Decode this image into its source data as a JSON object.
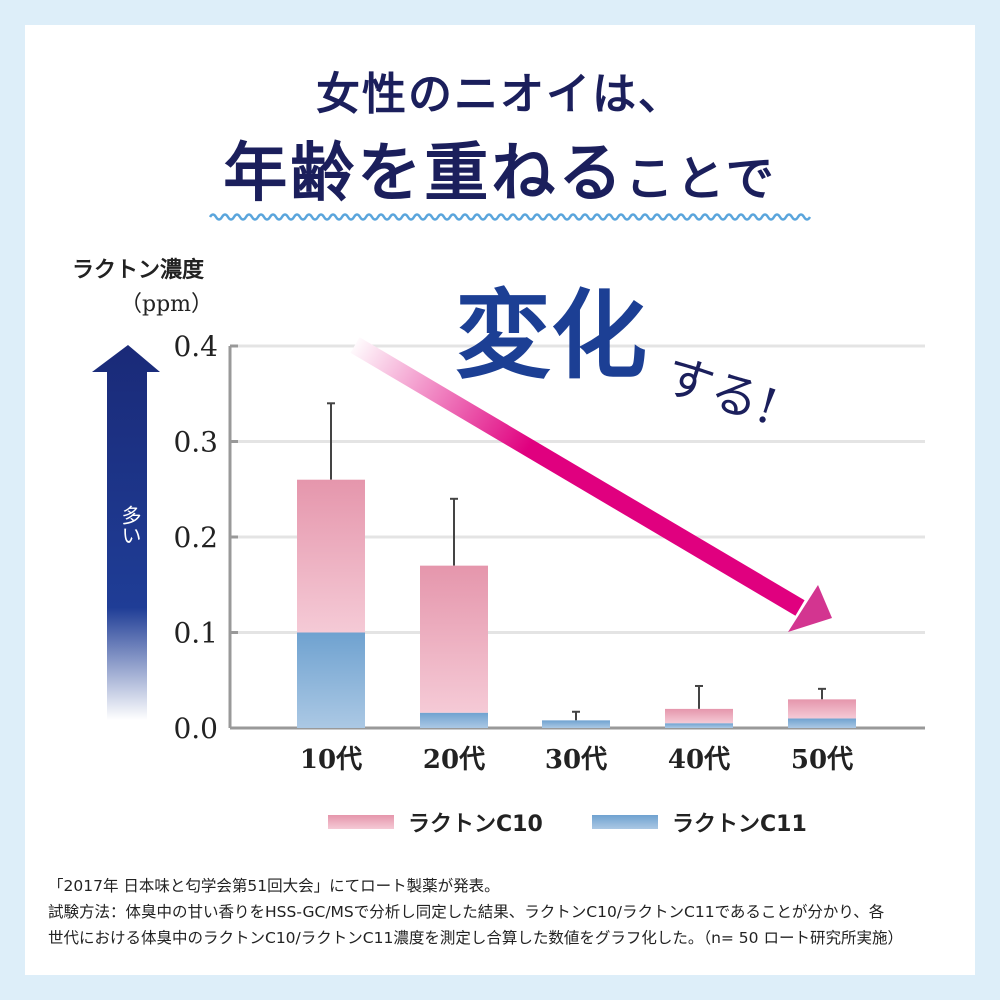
{
  "headline": {
    "line1": "女性のニオイは、",
    "line2_main": "年齢を重ねる",
    "line2_tail": "ことで",
    "accent_main": "変化",
    "accent_tail": "する!"
  },
  "axis_label": {
    "name": "ラクトン濃度",
    "unit": "（ppm）",
    "more": "多い"
  },
  "colors": {
    "c10": "#e89ab0",
    "c11": "#78a8d4",
    "arrow": "#e0007f",
    "title": "#1b1f5c"
  },
  "chart_data": {
    "type": "bar",
    "stacked": true,
    "categories": [
      "10代",
      "20代",
      "30代",
      "40代",
      "50代"
    ],
    "series": [
      {
        "name": "ラクトンC11",
        "values": [
          0.1,
          0.016,
          0.008,
          0.005,
          0.01
        ]
      },
      {
        "name": "ラクトンC10",
        "values": [
          0.16,
          0.154,
          0.0,
          0.015,
          0.02
        ]
      }
    ],
    "error_top": [
      0.34,
      0.24,
      0.017,
      0.044,
      0.041
    ],
    "ylim": [
      0,
      0.4
    ],
    "yticks": [
      "0.0",
      "0.1",
      "0.2",
      "0.3",
      "0.4"
    ],
    "grid": true,
    "legend": "bottom"
  },
  "notes": [
    "「2017年 日本味と匂学会第51回大会」にてロート製薬が発表。",
    "試験方法：体臭中の甘い香りをHSS-GC/MSで分析し同定した結果、ラクトンC10/ラクトンC11であることが分かり、各",
    "世代における体臭中のラクトンC10/ラクトンC11濃度を測定し合算した数値をグラフ化した。（n= 50 ロート研究所実施）"
  ]
}
